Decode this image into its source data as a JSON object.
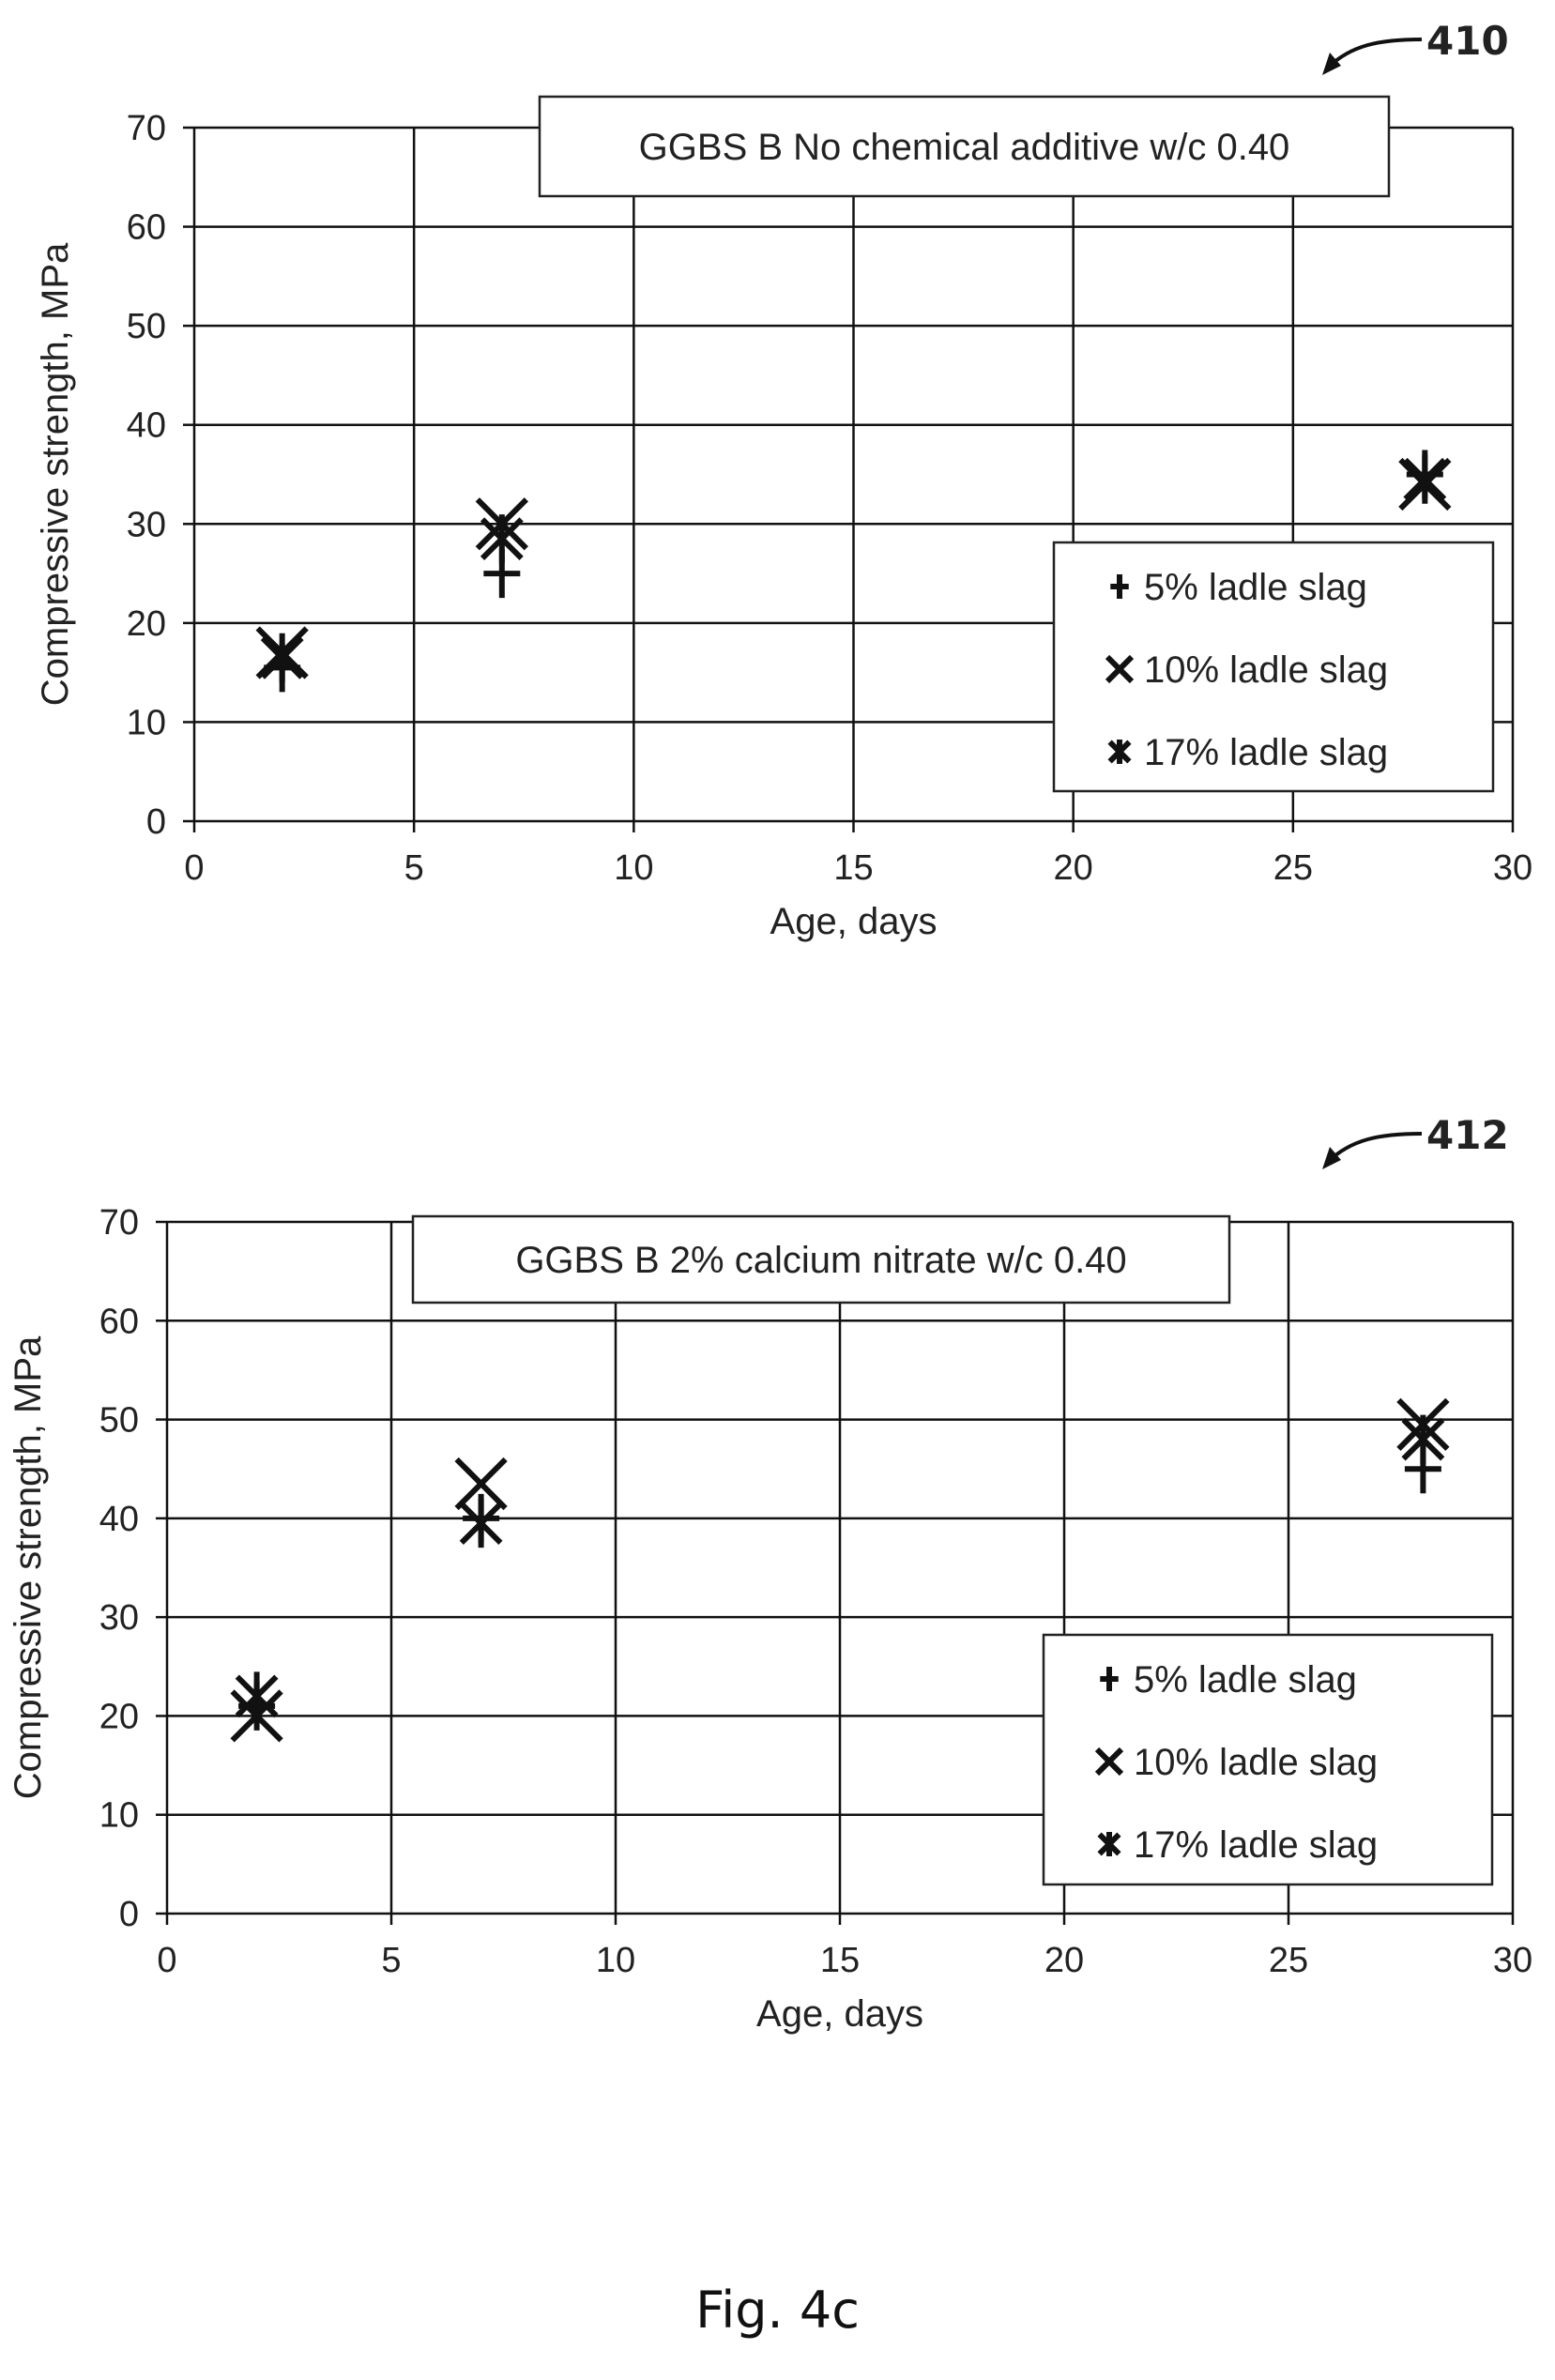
{
  "figure_label": "Fig. 4c",
  "chart_data": [
    {
      "type": "scatter",
      "ref": "410",
      "title": "GGBS B No chemical additive w/c 0.40",
      "xlabel": "Age, days",
      "ylabel": "Compressive strength, MPa",
      "xlim": [
        0,
        30
      ],
      "ylim": [
        0,
        70
      ],
      "xticks": [
        0,
        5,
        10,
        15,
        20,
        25,
        30
      ],
      "yticks": [
        0,
        10,
        20,
        30,
        40,
        50,
        60,
        70
      ],
      "grid": true,
      "legend_position": "bottom-right",
      "series": [
        {
          "name": "5% ladle slag",
          "marker": "plus",
          "x": [
            2,
            7,
            28
          ],
          "y": [
            15.5,
            25,
            35
          ]
        },
        {
          "name": "10% ladle slag",
          "marker": "x",
          "x": [
            2,
            7,
            28
          ],
          "y": [
            17,
            30,
            34
          ]
        },
        {
          "name": "17% ladle slag",
          "marker": "star",
          "x": [
            2,
            7,
            28
          ],
          "y": [
            16.5,
            28.5,
            34.5
          ]
        }
      ]
    },
    {
      "type": "scatter",
      "ref": "412",
      "title": "GGBS B 2% calcium nitrate w/c 0.40",
      "xlabel": "Age, days",
      "ylabel": "Compressive strength, MPa",
      "xlim": [
        0,
        30
      ],
      "ylim": [
        0,
        70
      ],
      "xticks": [
        0,
        5,
        10,
        15,
        20,
        25,
        30
      ],
      "yticks": [
        0,
        10,
        20,
        30,
        40,
        50,
        60,
        70
      ],
      "grid": true,
      "legend_position": "bottom-right",
      "series": [
        {
          "name": "5% ladle slag",
          "marker": "plus",
          "x": [
            2,
            7,
            28
          ],
          "y": [
            21,
            40,
            45
          ]
        },
        {
          "name": "10% ladle slag",
          "marker": "x",
          "x": [
            2,
            7,
            28
          ],
          "y": [
            20,
            43.5,
            49.5
          ]
        },
        {
          "name": "17% ladle slag",
          "marker": "star",
          "x": [
            2,
            7,
            28
          ],
          "y": [
            22,
            39.5,
            48
          ]
        }
      ]
    }
  ]
}
